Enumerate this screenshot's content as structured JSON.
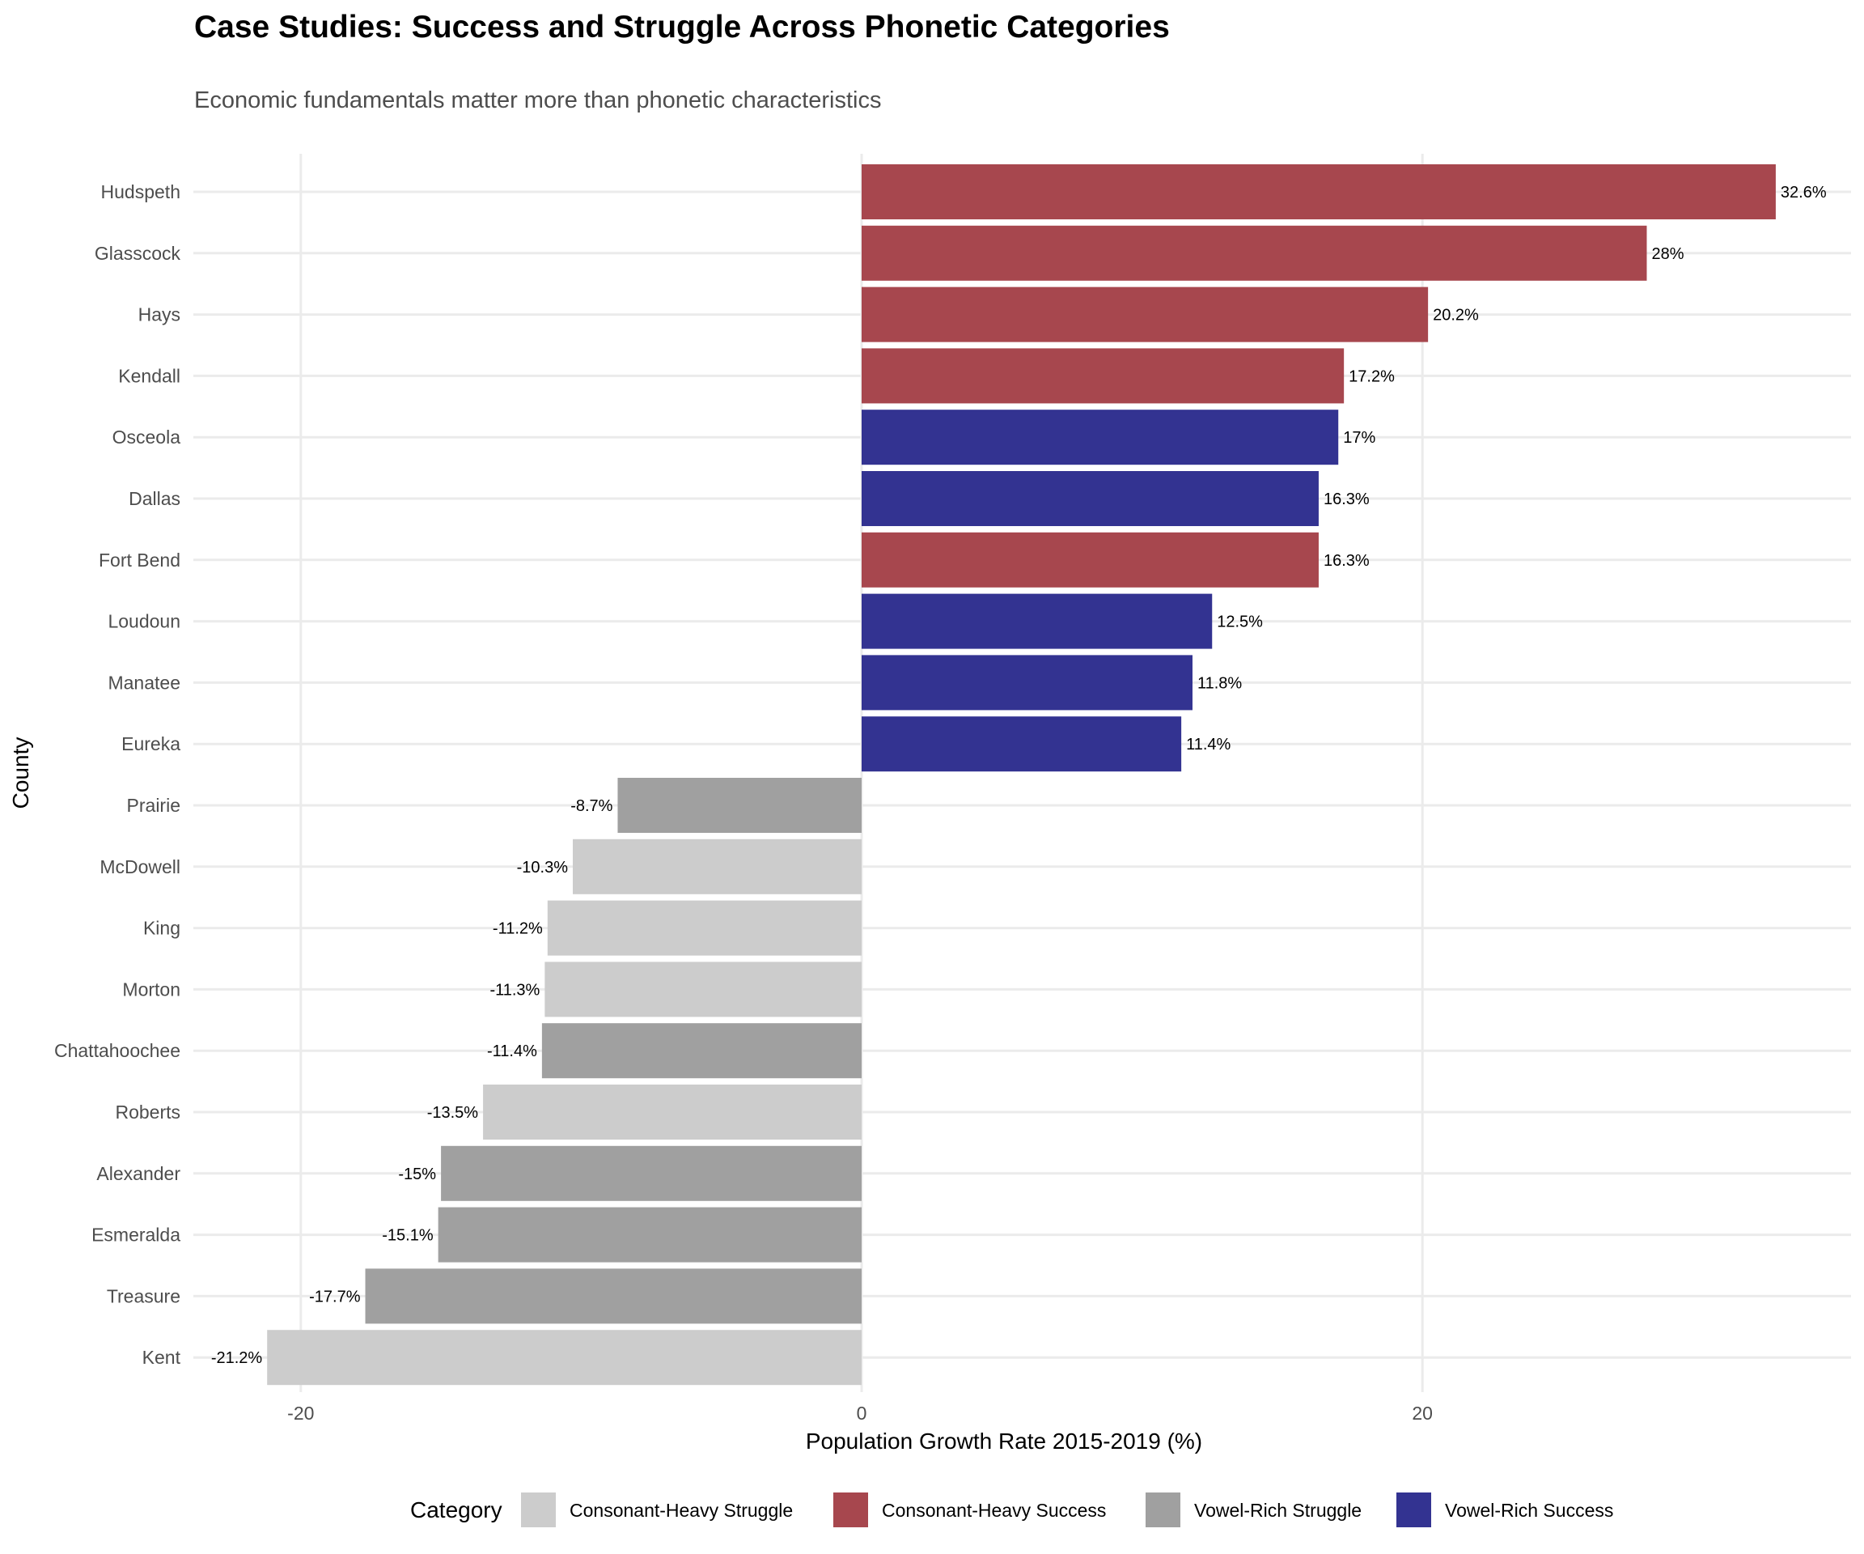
{
  "chart_data": {
    "type": "bar",
    "orientation": "horizontal",
    "title": "Case Studies: Success and Struggle Across Phonetic Categories",
    "subtitle": "Economic fundamentals matter more than phonetic characteristics",
    "xlabel": "Population Growth Rate 2015-2019 (%)",
    "ylabel": "County",
    "xlim": [
      -23,
      35
    ],
    "xticks": [
      -20,
      0,
      20
    ],
    "xtick_labels": [
      "-20",
      "0",
      "20"
    ],
    "grid": true,
    "legend_title": "Category",
    "legend_position": "bottom",
    "categories_legend": [
      {
        "name": "Consonant-Heavy Struggle",
        "color": "#cccccc"
      },
      {
        "name": "Consonant-Heavy Success",
        "color": "#a7474e"
      },
      {
        "name": "Vowel-Rich Struggle",
        "color": "#a0a0a0"
      },
      {
        "name": "Vowel-Rich Success",
        "color": "#333391"
      }
    ],
    "bars": [
      {
        "county": "Hudspeth",
        "value": 32.6,
        "label": "32.6%",
        "category": "Consonant-Heavy Success"
      },
      {
        "county": "Glasscock",
        "value": 28.0,
        "label": "28%",
        "category": "Consonant-Heavy Success"
      },
      {
        "county": "Hays",
        "value": 20.2,
        "label": "20.2%",
        "category": "Consonant-Heavy Success"
      },
      {
        "county": "Kendall",
        "value": 17.2,
        "label": "17.2%",
        "category": "Consonant-Heavy Success"
      },
      {
        "county": "Osceola",
        "value": 17.0,
        "label": "17%",
        "category": "Vowel-Rich Success"
      },
      {
        "county": "Dallas",
        "value": 16.3,
        "label": "16.3%",
        "category": "Vowel-Rich Success"
      },
      {
        "county": "Fort Bend",
        "value": 16.3,
        "label": "16.3%",
        "category": "Consonant-Heavy Success"
      },
      {
        "county": "Loudoun",
        "value": 12.5,
        "label": "12.5%",
        "category": "Vowel-Rich Success"
      },
      {
        "county": "Manatee",
        "value": 11.8,
        "label": "11.8%",
        "category": "Vowel-Rich Success"
      },
      {
        "county": "Eureka",
        "value": 11.4,
        "label": "11.4%",
        "category": "Vowel-Rich Success"
      },
      {
        "county": "Prairie",
        "value": -8.7,
        "label": "-8.7%",
        "category": "Vowel-Rich Struggle"
      },
      {
        "county": "McDowell",
        "value": -10.3,
        "label": "-10.3%",
        "category": "Consonant-Heavy Struggle"
      },
      {
        "county": "King",
        "value": -11.2,
        "label": "-11.2%",
        "category": "Consonant-Heavy Struggle"
      },
      {
        "county": "Morton",
        "value": -11.3,
        "label": "-11.3%",
        "category": "Consonant-Heavy Struggle"
      },
      {
        "county": "Chattahoochee",
        "value": -11.4,
        "label": "-11.4%",
        "category": "Vowel-Rich Struggle"
      },
      {
        "county": "Roberts",
        "value": -13.5,
        "label": "-13.5%",
        "category": "Consonant-Heavy Struggle"
      },
      {
        "county": "Alexander",
        "value": -15.0,
        "label": "-15%",
        "category": "Vowel-Rich Struggle"
      },
      {
        "county": "Esmeralda",
        "value": -15.1,
        "label": "-15.1%",
        "category": "Vowel-Rich Struggle"
      },
      {
        "county": "Treasure",
        "value": -17.7,
        "label": "-17.7%",
        "category": "Vowel-Rich Struggle"
      },
      {
        "county": "Kent",
        "value": -21.2,
        "label": "-21.2%",
        "category": "Consonant-Heavy Struggle"
      }
    ]
  }
}
